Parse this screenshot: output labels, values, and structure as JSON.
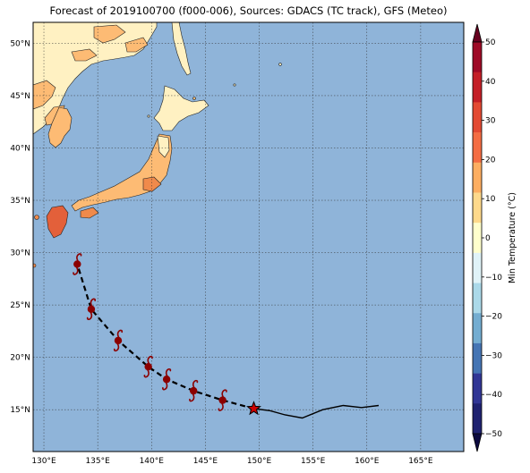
{
  "title": "Forecast of 2019100700 (f000-006), Sources: GDACS (TC track), GFS (Meteo)",
  "map": {
    "lon_range": [
      129,
      169
    ],
    "lat_range": [
      11,
      52
    ],
    "ocean_color": "#8fb4d9",
    "grid": true,
    "x_ticks": [
      "130°E",
      "135°E",
      "140°E",
      "145°E",
      "150°E",
      "155°E",
      "160°E",
      "165°E"
    ],
    "y_ticks": [
      "15°N",
      "20°N",
      "25°N",
      "30°N",
      "35°N",
      "40°N",
      "45°N",
      "50°N"
    ]
  },
  "track": {
    "current_position": {
      "lon": 149.5,
      "lat": 15.1,
      "marker": "star",
      "color": "#cc0000"
    },
    "past_track": [
      [
        161.1,
        15.4
      ],
      [
        159.5,
        15.2
      ],
      [
        157.8,
        15.4
      ],
      [
        155.9,
        15.0
      ],
      [
        154.0,
        14.2
      ],
      [
        152.4,
        14.5
      ],
      [
        151.0,
        14.9
      ],
      [
        149.5,
        15.1
      ]
    ],
    "forecast_track": [
      [
        149.5,
        15.1
      ],
      [
        146.6,
        15.9
      ],
      [
        143.9,
        16.8
      ],
      [
        141.4,
        17.9
      ],
      [
        139.7,
        19.1
      ],
      [
        136.9,
        21.6
      ],
      [
        134.4,
        24.6
      ],
      [
        133.1,
        28.9
      ]
    ],
    "forecast_points": [
      {
        "lon": 146.6,
        "lat": 15.9
      },
      {
        "lon": 143.9,
        "lat": 16.8
      },
      {
        "lon": 141.4,
        "lat": 17.9
      },
      {
        "lon": 139.7,
        "lat": 19.1
      },
      {
        "lon": 136.9,
        "lat": 21.6
      },
      {
        "lon": 134.4,
        "lat": 24.6
      },
      {
        "lon": 133.1,
        "lat": 28.9
      }
    ],
    "symbol_color": "#8b0000"
  },
  "colorbar": {
    "label": "Min Temperature (°C)",
    "tick_labels": [
      "50",
      "40",
      "30",
      "20",
      "10",
      "0",
      "−10",
      "−20",
      "−30",
      "−40",
      "−50"
    ],
    "colors_top_to_bottom": [
      "#9e0a26",
      "#c41f27",
      "#e34a33",
      "#f46d43",
      "#fdae61",
      "#fed98b",
      "#ffffcc",
      "#e0f3f8",
      "#abd9e9",
      "#74add1",
      "#4575b4",
      "#313695",
      "#1f2270"
    ],
    "over_color": "#67001f",
    "under_color": "#0c0a40"
  },
  "land": {
    "cool": "#fff1c2",
    "warm": "#fdbb74",
    "hot": "#f08a4b",
    "hottest": "#e3603a"
  }
}
